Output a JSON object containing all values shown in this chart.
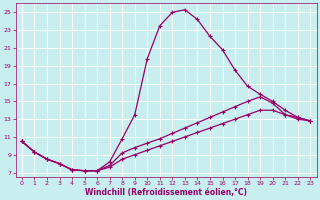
{
  "xlabel": "Windchill (Refroidissement éolien,°C)",
  "bg_color": "#c8eef0",
  "grid_color": "#ffffff",
  "line_color": "#990066",
  "xlim": [
    -0.5,
    23.5
  ],
  "ylim": [
    6.5,
    26
  ],
  "xticks": [
    0,
    1,
    2,
    3,
    4,
    5,
    6,
    7,
    8,
    9,
    10,
    11,
    12,
    13,
    14,
    15,
    16,
    17,
    18,
    19,
    20,
    21,
    22,
    23
  ],
  "yticks": [
    7,
    9,
    11,
    13,
    15,
    17,
    19,
    21,
    23,
    25
  ],
  "curve1_x": [
    0,
    1,
    2,
    3,
    4,
    5,
    6,
    7,
    8,
    9,
    10,
    11,
    12,
    13,
    14,
    15,
    16,
    17,
    18,
    19,
    20,
    21,
    22,
    23
  ],
  "curve1_y": [
    10.5,
    9.3,
    8.5,
    8.0,
    7.3,
    7.2,
    7.2,
    8.2,
    10.8,
    13.5,
    19.8,
    23.5,
    25.0,
    25.3,
    24.2,
    22.3,
    20.8,
    18.5,
    16.7,
    15.8,
    15.0,
    14.0,
    13.2,
    12.8
  ],
  "curve2_x": [
    0,
    1,
    2,
    3,
    4,
    5,
    6,
    7,
    8,
    9,
    10,
    11,
    12,
    13,
    14,
    15,
    16,
    17,
    18,
    19,
    20,
    21,
    22,
    23
  ],
  "curve2_y": [
    10.5,
    9.3,
    8.5,
    8.0,
    7.3,
    7.2,
    7.2,
    7.8,
    9.2,
    9.8,
    10.3,
    10.8,
    11.4,
    12.0,
    12.6,
    13.2,
    13.8,
    14.4,
    15.0,
    15.5,
    14.8,
    13.5,
    13.2,
    12.8
  ],
  "curve3_x": [
    0,
    1,
    2,
    3,
    4,
    5,
    6,
    7,
    8,
    9,
    10,
    11,
    12,
    13,
    14,
    15,
    16,
    17,
    18,
    19,
    20,
    21,
    22,
    23
  ],
  "curve3_y": [
    10.5,
    9.3,
    8.5,
    8.0,
    7.3,
    7.2,
    7.2,
    7.6,
    8.5,
    9.0,
    9.5,
    10.0,
    10.5,
    11.0,
    11.5,
    12.0,
    12.5,
    13.0,
    13.5,
    14.0,
    14.0,
    13.5,
    13.0,
    12.8
  ],
  "marker_size": 2.5,
  "line_width": 0.9,
  "tick_fontsize": 4.5,
  "xlabel_fontsize": 5.5
}
